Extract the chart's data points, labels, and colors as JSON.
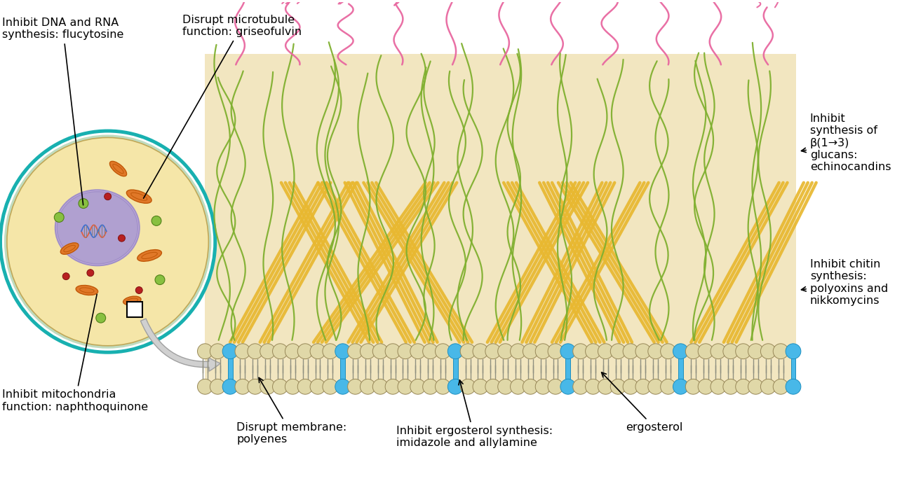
{
  "bg_color": "#ffffff",
  "cell_bg": "#f5e6a8",
  "cell_border_teal": "#1ab0b0",
  "cell_border_light_green": "#a8d8a8",
  "nucleus_fill": "#b0a0d0",
  "nucleus_border": "#9080c0",
  "mito_color": "#e07828",
  "mito_border": "#c05808",
  "dot_green": "#88c040",
  "dot_red": "#b82020",
  "wall_bg": "#f2e6c0",
  "pl_head_color": "#e0d8a8",
  "pl_head_border": "#988858",
  "ergosterol_color": "#48b8e8",
  "ergosterol_border": "#2090c0",
  "chitin_color": "#e8b830",
  "chitin_border": "#c09010",
  "glucan_color": "#80b030",
  "protein_color": "#e868a0",
  "tail_color": "#909080",
  "annotations": {
    "inhibit_dna": "Inhibit DNA and RNA\nsynthesis: flucytosine",
    "disrupt_microtubule": "Disrupt microtubule\nfunction: griseofulvin",
    "inhibit_mito": "Inhibit mitochondria\nfunction: naphthoquinone",
    "inhibit_glucan": "Inhibit\nsynthesis of\nβ(1→3)\nglucans:\nechinocandins",
    "inhibit_chitin": "Inhibit chitin\nsynthesis:\npolyoxins and\nnikkomycins",
    "disrupt_membrane": "Disrupt membrane:\npolyenes",
    "inhibit_ergosterol": "Inhibit ergosterol synthesis:\nimidazole and allylamine",
    "ergosterol": "ergosterol"
  }
}
